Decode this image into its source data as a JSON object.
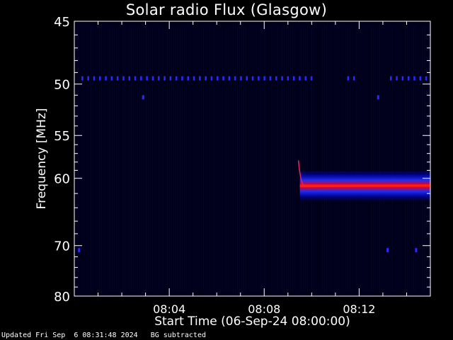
{
  "colors": {
    "background": "#000000",
    "plot_background": "#00001a",
    "axis": "#ffffff",
    "burst_core": "#ff2200",
    "burst_halo": "#2233ff",
    "interference": "#2a2aff"
  },
  "chart_data": {
    "type": "heatmap",
    "title": "Solar radio Flux (Glasgow)",
    "xlabel": "Start Time (06-Sep-24 08:00:00)",
    "ylabel": "Frequency [MHz]",
    "x_unit": "minutes after 08:00:00",
    "xlim": [
      0,
      15.0
    ],
    "ylim": [
      80,
      45
    ],
    "y_scale": "reciprocal",
    "x_ticks": [
      {
        "value": 4,
        "label": "08:04"
      },
      {
        "value": 8,
        "label": "08:08"
      },
      {
        "value": 12,
        "label": "08:12"
      }
    ],
    "y_ticks": [
      {
        "value": 45,
        "label": "45"
      },
      {
        "value": 50,
        "label": "50"
      },
      {
        "value": 55,
        "label": "55"
      },
      {
        "value": 60,
        "label": "60"
      },
      {
        "value": 70,
        "label": "70"
      },
      {
        "value": 80,
        "label": "80"
      }
    ],
    "y_minor_ticks": [
      46,
      47,
      48,
      49,
      51,
      52,
      53,
      54,
      56,
      57,
      58,
      59,
      62,
      64,
      66,
      68,
      72,
      74,
      76,
      78
    ],
    "x_minor_count_per_major": 4,
    "burst": {
      "start_min": 9.5,
      "end_min": 15.0,
      "freq_center_mhz": 61.0,
      "freq_low_mhz": 59.5,
      "freq_high_mhz": 62.5,
      "onset_top_mhz": 57.8
    },
    "interference_lines": [
      {
        "freq_mhz": 49.5,
        "from_min": 0.3,
        "to_min": 10.2
      },
      {
        "freq_mhz": 49.5,
        "from_min": 11.5,
        "to_min": 11.8
      },
      {
        "freq_mhz": 49.5,
        "from_min": 13.3,
        "to_min": 15.0
      }
    ],
    "interference_dots": [
      {
        "freq_mhz": 51.2,
        "min": 2.9
      },
      {
        "freq_mhz": 51.2,
        "min": 12.8
      },
      {
        "freq_mhz": 70.8,
        "min": 0.2
      },
      {
        "freq_mhz": 70.8,
        "min": 13.2
      },
      {
        "freq_mhz": 70.8,
        "min": 14.4
      }
    ]
  },
  "footer": "Updated Fri Sep  6 08:31:48 2024   BG subtracted"
}
